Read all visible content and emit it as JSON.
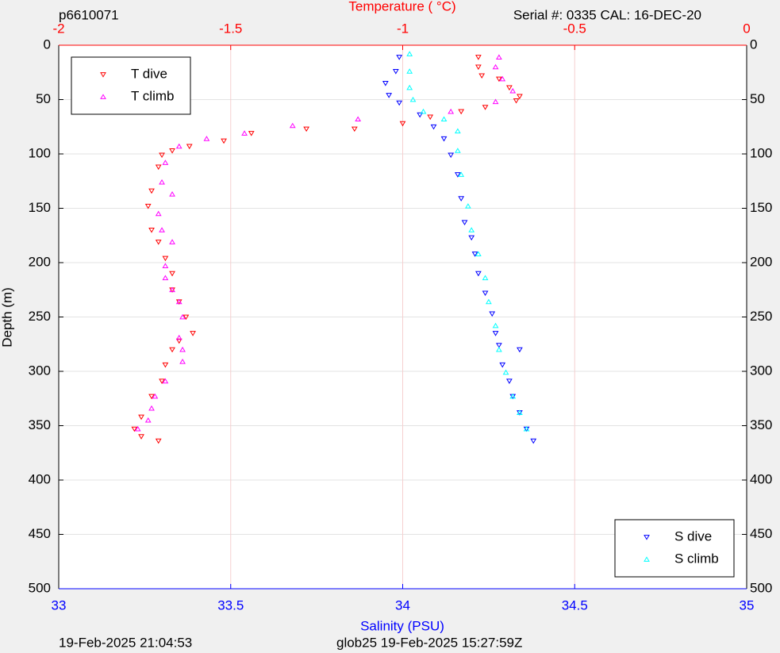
{
  "chart_data": {
    "type": "scatter",
    "top_left_text": "p6610071",
    "top_right_text": "Serial #: 0335  CAL: 16-DEC-20",
    "x2_label": "Temperature (   °C)",
    "x_label": "Salinity (PSU)",
    "y_label": "Depth (m)",
    "bottom_left_text": "19-Feb-2025 21:04:53",
    "bottom_center_text": "glob25 19-Feb-2025 15:27:59Z",
    "ylim": [
      0,
      500
    ],
    "y_reversed": true,
    "yticks": [
      0,
      50,
      100,
      150,
      200,
      250,
      300,
      350,
      400,
      450,
      500
    ],
    "xlim": [
      33,
      35
    ],
    "xticks": [
      33,
      33.5,
      34,
      34.5,
      35
    ],
    "x_color": "#0000ff",
    "x2lim": [
      -2,
      0
    ],
    "x2ticks": [
      -2,
      -1.5,
      -1,
      -0.5,
      0
    ],
    "x2_color": "#ff0000",
    "grid": true,
    "series": [
      {
        "name": "T dive",
        "color": "#ff0000",
        "marker": "v",
        "axis": "x2",
        "legend": "upper left",
        "x": [
          -0.78,
          -0.78,
          -0.77,
          -0.72,
          -0.69,
          -0.66,
          -0.67,
          -0.76,
          -0.83,
          -0.92,
          -1.0,
          -1.14,
          -1.28,
          -1.44,
          -1.52,
          -1.62,
          -1.67,
          -1.7,
          -1.71,
          -1.73,
          -1.74,
          -1.73,
          -1.71,
          -1.69,
          -1.67,
          -1.67,
          -1.65,
          -1.63,
          -1.61,
          -1.65,
          -1.67,
          -1.69,
          -1.7,
          -1.73,
          -1.76,
          -1.78,
          -1.76,
          -1.71
        ],
        "y": [
          11,
          20,
          28,
          31,
          39,
          47,
          51,
          57,
          61,
          66,
          72,
          77,
          77,
          81,
          88,
          93,
          97,
          101,
          112,
          134,
          148,
          170,
          181,
          196,
          210,
          225,
          236,
          250,
          265,
          272,
          280,
          294,
          309,
          323,
          342,
          353,
          360,
          364
        ]
      },
      {
        "name": "T climb",
        "color": "#ff00ff",
        "marker": "^",
        "axis": "x2",
        "legend": "upper left",
        "x": [
          -0.72,
          -0.73,
          -0.71,
          -0.68,
          -0.73,
          -0.86,
          -1.13,
          -1.32,
          -1.46,
          -1.57,
          -1.65,
          -1.69,
          -1.7,
          -1.67,
          -1.71,
          -1.7,
          -1.67,
          -1.69,
          -1.69,
          -1.67,
          -1.65,
          -1.64,
          -1.65,
          -1.64,
          -1.64,
          -1.69,
          -1.72,
          -1.73,
          -1.74,
          -1.77
        ],
        "y": [
          11,
          20,
          31,
          42,
          52,
          61,
          68,
          74,
          81,
          86,
          93,
          108,
          126,
          137,
          155,
          170,
          181,
          203,
          214,
          225,
          236,
          250,
          269,
          280,
          291,
          309,
          323,
          334,
          345,
          353
        ]
      },
      {
        "name": "S dive",
        "color": "#0000ff",
        "marker": "v",
        "axis": "x",
        "legend": "lower right",
        "x": [
          33.99,
          33.98,
          33.95,
          33.96,
          33.99,
          34.05,
          34.09,
          34.12,
          34.14,
          34.16,
          34.17,
          34.18,
          34.2,
          34.21,
          34.22,
          34.24,
          34.26,
          34.27,
          34.28,
          34.34,
          34.29,
          34.31,
          34.32,
          34.34,
          34.36,
          34.38
        ],
        "y": [
          11,
          24,
          35,
          46,
          53,
          64,
          75,
          86,
          101,
          119,
          141,
          163,
          177,
          192,
          210,
          228,
          247,
          265,
          276,
          280,
          294,
          309,
          323,
          338,
          353,
          364
        ]
      },
      {
        "name": "S climb",
        "color": "#00ffff",
        "marker": "^",
        "axis": "x",
        "legend": "lower right",
        "x": [
          34.02,
          34.02,
          34.02,
          34.03,
          34.06,
          34.12,
          34.16,
          34.16,
          34.17,
          34.19,
          34.2,
          34.22,
          34.24,
          34.25,
          34.27,
          34.28,
          34.3,
          34.32,
          34.34,
          34.36
        ],
        "y": [
          8,
          24,
          39,
          50,
          61,
          68,
          79,
          97,
          119,
          148,
          170,
          192,
          214,
          236,
          258,
          280,
          301,
          323,
          338,
          353
        ]
      }
    ]
  }
}
